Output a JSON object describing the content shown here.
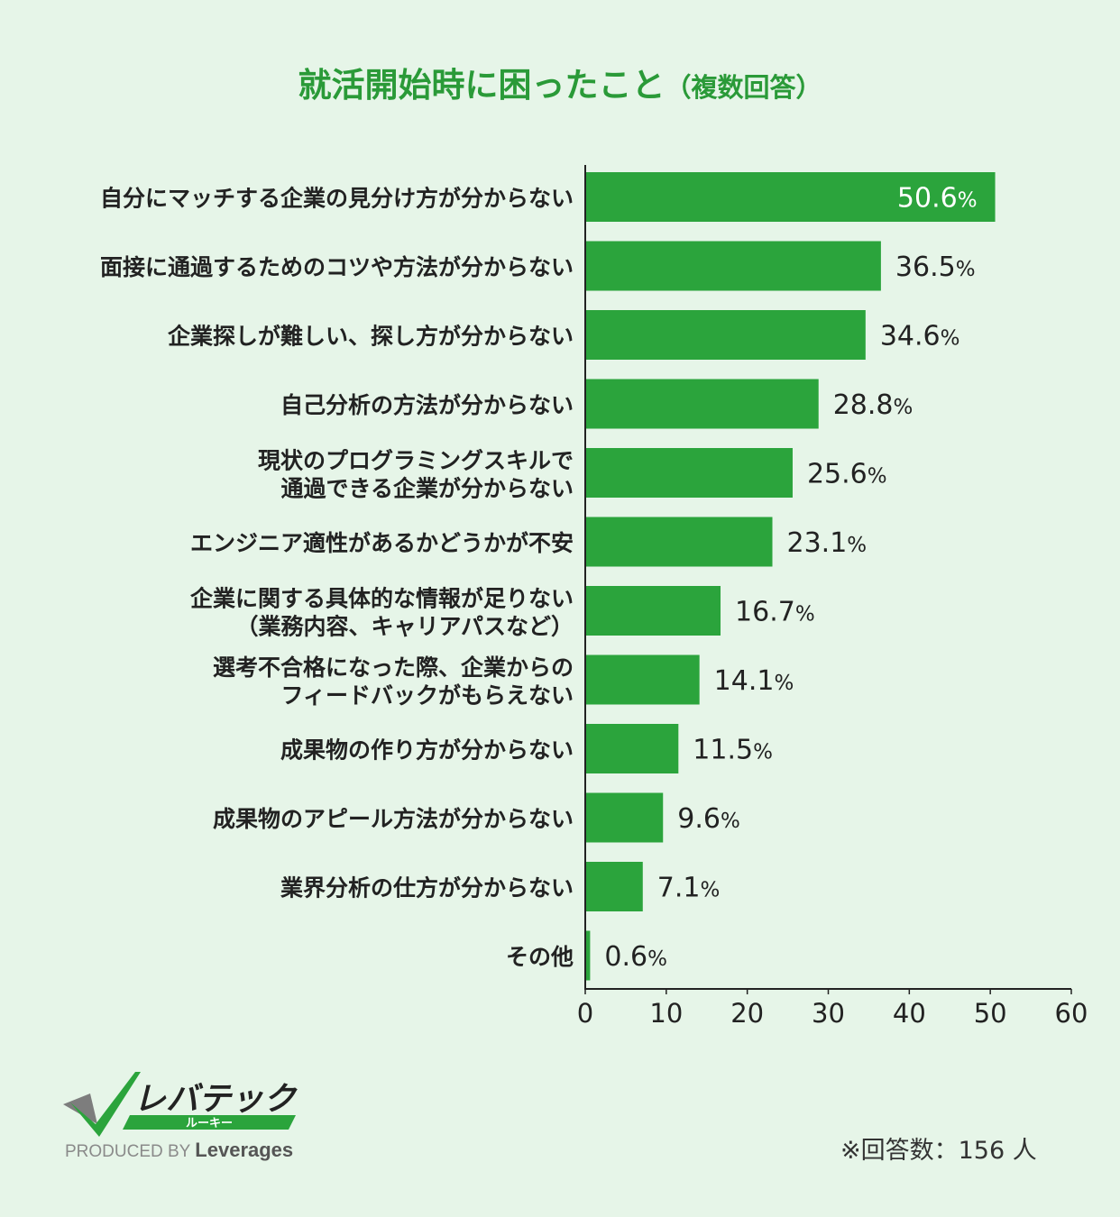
{
  "chart_data": {
    "type": "bar",
    "orientation": "horizontal",
    "title": "就活開始時に困ったこと",
    "subtitle": "（複数回答）",
    "categories": [
      [
        "自分にマッチする企業の見分け方が分からない"
      ],
      [
        "面接に通過するためのコツや方法が分からない"
      ],
      [
        "企業探しが難しい、探し方が分からない"
      ],
      [
        "自己分析の方法が分からない"
      ],
      [
        "現状のプログラミングスキルで",
        "通過できる企業が分からない"
      ],
      [
        "エンジニア適性があるかどうかが不安"
      ],
      [
        "企業に関する具体的な情報が足りない",
        "（業務内容、キャリアパスなど）"
      ],
      [
        "選考不合格になった際、企業からの",
        "フィードバックがもらえない"
      ],
      [
        "成果物の作り方が分からない"
      ],
      [
        "成果物のアピール方法が分からない"
      ],
      [
        "業界分析の仕方が分からない"
      ],
      [
        "その他"
      ]
    ],
    "values": [
      50.6,
      36.5,
      34.6,
      28.8,
      25.6,
      23.1,
      16.7,
      14.1,
      11.5,
      9.6,
      7.1,
      0.6
    ],
    "value_labels": [
      "50.6",
      "36.5",
      "34.6",
      "28.8",
      "25.6",
      "23.1",
      "16.7",
      "14.1",
      "11.5",
      "9.6",
      "7.1",
      "0.6"
    ],
    "value_suffix": "%",
    "xlim": [
      0,
      60
    ],
    "xticks": [
      "0",
      "10",
      "20",
      "30",
      "40",
      "50",
      "60"
    ],
    "grid": false,
    "legend": "none",
    "colors": {
      "bar": "#2ba43c",
      "title": "#2a9a38",
      "background": "#e6f5e8",
      "axis": "#222222",
      "label_inside": "#ffffff"
    }
  },
  "brand": {
    "logo_text": "レバテック",
    "logo_subtext": "ルーキー",
    "produced_by": "PRODUCED BY",
    "company": "Leverages"
  },
  "note": "※回答数：156 人"
}
